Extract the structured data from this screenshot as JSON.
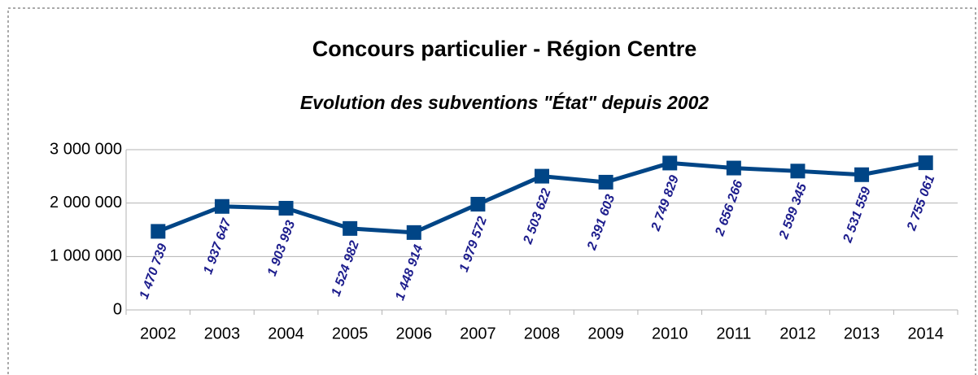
{
  "chart_data": {
    "type": "line",
    "title": "Concours particulier - Région Centre",
    "subtitle": "Evolution des subventions \"État\" depuis 2002",
    "categories": [
      "2002",
      "2003",
      "2004",
      "2005",
      "2006",
      "2007",
      "2008",
      "2009",
      "2010",
      "2011",
      "2012",
      "2013",
      "2014"
    ],
    "series": [
      {
        "name": "Subventions État",
        "color": "#004586",
        "values": [
          1470739,
          1937647,
          1903993,
          1524982,
          1448914,
          1979572,
          2503622,
          2391603,
          2749829,
          2656266,
          2599345,
          2531559,
          2755061
        ],
        "value_labels": [
          "1 470 739",
          "1 937 647",
          "1 903 993",
          "1 524 982",
          "1 448 914",
          "1 979 572",
          "2 503 622",
          "2 391 603",
          "2 749 829",
          "2 656 266",
          "2 599 345",
          "2 531 559",
          "2 755 061"
        ]
      }
    ],
    "ylim": [
      0,
      3000000
    ],
    "yticks": [
      0,
      {
        "value": 1000000,
        "label": "1 000 000"
      },
      {
        "value": 2000000,
        "label": "2 000 000"
      },
      {
        "value": 3000000,
        "label": "3 000 000"
      }
    ],
    "grid": true
  }
}
